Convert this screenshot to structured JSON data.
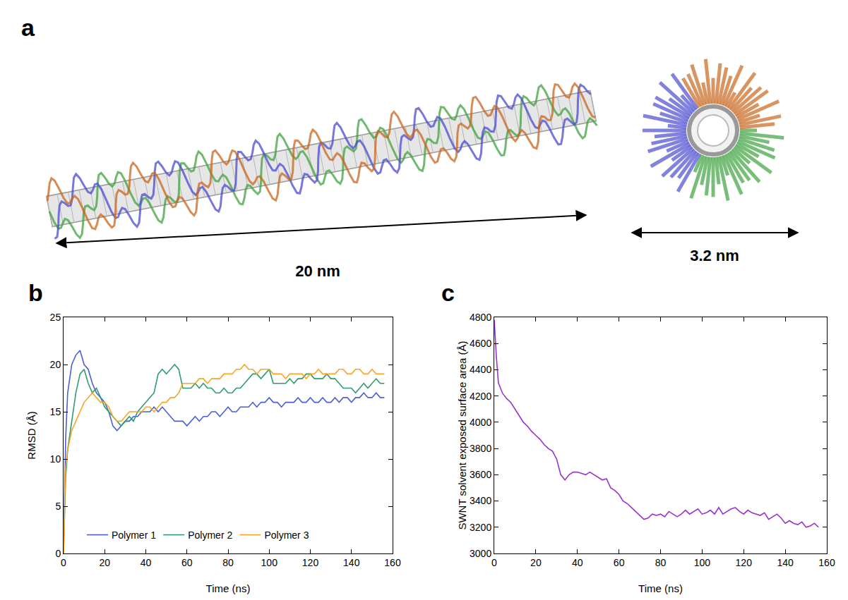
{
  "panel_a": {
    "panel_label": "a",
    "length_label": "20 nm",
    "diameter_label": "3.2 nm"
  },
  "chart_data": [
    {
      "type": "line",
      "panel_label": "b",
      "x_label": "Time (ns)",
      "y_label": "RMSD (Å)",
      "xlim": [
        0,
        160
      ],
      "xticks": [
        0,
        20,
        40,
        60,
        80,
        100,
        120,
        140,
        160
      ],
      "ylim": [
        0,
        25
      ],
      "yticks": [
        0,
        5,
        10,
        15,
        20,
        25
      ],
      "grid": false,
      "legend": "bottom",
      "x": [
        0,
        1,
        2,
        4,
        6,
        8,
        10,
        12,
        14,
        16,
        18,
        20,
        22,
        24,
        26,
        28,
        30,
        32,
        34,
        36,
        38,
        40,
        42,
        44,
        46,
        48,
        50,
        52,
        54,
        56,
        58,
        60,
        62,
        64,
        66,
        68,
        70,
        72,
        74,
        76,
        78,
        80,
        82,
        84,
        86,
        88,
        90,
        92,
        94,
        96,
        98,
        100,
        102,
        104,
        106,
        108,
        110,
        112,
        114,
        116,
        118,
        120,
        122,
        124,
        126,
        128,
        130,
        132,
        134,
        136,
        138,
        140,
        142,
        144,
        146,
        148,
        150,
        152,
        154,
        156
      ],
      "series": [
        {
          "name": "Polymer 1",
          "color": "#4a5fd6",
          "values": [
            0,
            12,
            17,
            20,
            21,
            21.5,
            20,
            19.5,
            18,
            17,
            16.5,
            16,
            15,
            13.5,
            13,
            13.5,
            14,
            14,
            14.5,
            14.5,
            15,
            15,
            15,
            15.5,
            15,
            15.5,
            15,
            14.5,
            14,
            14,
            14,
            13.5,
            14,
            14.5,
            14,
            14.5,
            14.5,
            15,
            15,
            14.5,
            15,
            15.5,
            15,
            15,
            15.5,
            15.5,
            15.5,
            16,
            15.5,
            16,
            16,
            16.5,
            16,
            16,
            15.5,
            16,
            16,
            16,
            16.5,
            16,
            16,
            16.5,
            16,
            16,
            16.5,
            16,
            16,
            16.5,
            16,
            16.5,
            16.5,
            16,
            16.5,
            16.5,
            17,
            16.5,
            16.5,
            17,
            16.5,
            16.5
          ]
        },
        {
          "name": "Polymer 2",
          "color": "#2e9c6e",
          "values": [
            0,
            8,
            11,
            14,
            17,
            19,
            19.5,
            18,
            17,
            17.5,
            16.5,
            15.5,
            15,
            14.5,
            14,
            13.5,
            14,
            14.5,
            14,
            15,
            15.5,
            16,
            16.5,
            17,
            19,
            19.5,
            19,
            19.5,
            20,
            19.5,
            17.5,
            17.5,
            17.5,
            18,
            17.5,
            18,
            17.5,
            17.5,
            17,
            17,
            17.5,
            17,
            17,
            17.5,
            17.5,
            18,
            18.5,
            19,
            19,
            18.5,
            19,
            19.5,
            18,
            18,
            18,
            18,
            18.5,
            18,
            18.5,
            18.5,
            19,
            19,
            18.5,
            18.5,
            18.5,
            19,
            18.5,
            18.5,
            18,
            17.5,
            17.5,
            17.5,
            17,
            17.5,
            18,
            17.5,
            18,
            18.5,
            18,
            18
          ]
        },
        {
          "name": "Polymer 3",
          "color": "#f5a623",
          "values": [
            0,
            9,
            11,
            13,
            14,
            15,
            16,
            16.5,
            17,
            16.5,
            16,
            16,
            15.5,
            14.5,
            14,
            14,
            14.5,
            15,
            15,
            15,
            15,
            15.5,
            15.5,
            15,
            15.5,
            16,
            16,
            16.5,
            16.5,
            17,
            18,
            18,
            18,
            18,
            18.5,
            18.5,
            18,
            18.5,
            18.5,
            18.5,
            19,
            19,
            19,
            19.5,
            19.5,
            20,
            19.5,
            19.5,
            19,
            19.5,
            19.5,
            19.5,
            19,
            19,
            19,
            18.5,
            19,
            19,
            19,
            19,
            18.5,
            19,
            19,
            19.5,
            19,
            19,
            19,
            19,
            19.5,
            19.5,
            19,
            19,
            19.5,
            19.5,
            19,
            19,
            19.5,
            19,
            19,
            19
          ]
        }
      ]
    },
    {
      "type": "line",
      "panel_label": "c",
      "x_label": "Time (ns)",
      "y_label": "SWNT solvent exposed surface area (Å)",
      "xlim": [
        0,
        160
      ],
      "xticks": [
        0,
        20,
        40,
        60,
        80,
        100,
        120,
        140,
        160
      ],
      "ylim": [
        3000,
        4800
      ],
      "yticks": [
        3000,
        3200,
        3400,
        3600,
        3800,
        4000,
        4200,
        4400,
        4600,
        4800
      ],
      "grid": false,
      "color": "#9932cc",
      "x": [
        0,
        1,
        2,
        4,
        6,
        8,
        10,
        12,
        14,
        16,
        18,
        20,
        22,
        24,
        26,
        28,
        30,
        32,
        34,
        36,
        38,
        40,
        42,
        44,
        46,
        48,
        50,
        52,
        54,
        56,
        58,
        60,
        62,
        64,
        66,
        68,
        70,
        72,
        74,
        76,
        78,
        80,
        82,
        84,
        86,
        88,
        90,
        92,
        94,
        96,
        98,
        100,
        102,
        104,
        106,
        108,
        110,
        112,
        114,
        116,
        118,
        120,
        122,
        124,
        126,
        128,
        130,
        132,
        134,
        136,
        138,
        140,
        142,
        144,
        146,
        148,
        150,
        152,
        154,
        156
      ],
      "values": [
        4780,
        4500,
        4300,
        4220,
        4180,
        4150,
        4100,
        4050,
        4000,
        3970,
        3930,
        3900,
        3870,
        3830,
        3800,
        3780,
        3720,
        3600,
        3560,
        3600,
        3620,
        3620,
        3610,
        3600,
        3620,
        3600,
        3580,
        3560,
        3570,
        3500,
        3480,
        3450,
        3400,
        3380,
        3350,
        3320,
        3290,
        3260,
        3270,
        3300,
        3290,
        3300,
        3280,
        3320,
        3300,
        3280,
        3300,
        3330,
        3300,
        3320,
        3340,
        3300,
        3310,
        3330,
        3300,
        3350,
        3300,
        3320,
        3340,
        3350,
        3320,
        3300,
        3330,
        3310,
        3300,
        3290,
        3310,
        3260,
        3280,
        3300,
        3270,
        3230,
        3250,
        3230,
        3220,
        3240,
        3200,
        3210,
        3230,
        3200
      ]
    }
  ]
}
